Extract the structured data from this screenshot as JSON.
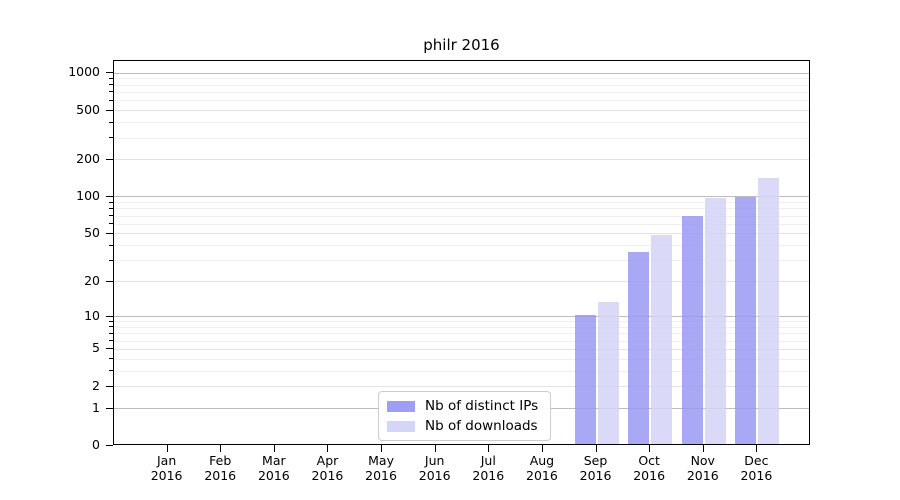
{
  "chart_data": {
    "type": "bar",
    "title": "philr 2016",
    "categories": [
      "Jan",
      "Feb",
      "Mar",
      "Apr",
      "May",
      "Jun",
      "Jul",
      "Aug",
      "Sep",
      "Oct",
      "Nov",
      "Dec"
    ],
    "x_year_label": "2016",
    "series": [
      {
        "name": "Nb of distinct IPs",
        "color": "#9999f2",
        "values": [
          0,
          0,
          0,
          0,
          0,
          0,
          0,
          0,
          10,
          34,
          68,
          97
        ]
      },
      {
        "name": "Nb of downloads",
        "color": "#d3d3f7",
        "values": [
          0,
          0,
          0,
          0,
          0,
          0,
          0,
          0,
          13,
          47,
          94,
          138
        ]
      }
    ],
    "y_scale": "log1p",
    "y_ticks": [
      0,
      1,
      2,
      5,
      10,
      20,
      50,
      100,
      200,
      500,
      1000
    ],
    "y_minor_ticks": [
      3,
      4,
      6,
      7,
      8,
      9,
      30,
      40,
      60,
      70,
      80,
      90,
      300,
      400,
      600,
      700,
      800,
      900
    ],
    "ylim": [
      0,
      1255
    ],
    "grid": true,
    "legend_position": "bottom-center-inside"
  }
}
